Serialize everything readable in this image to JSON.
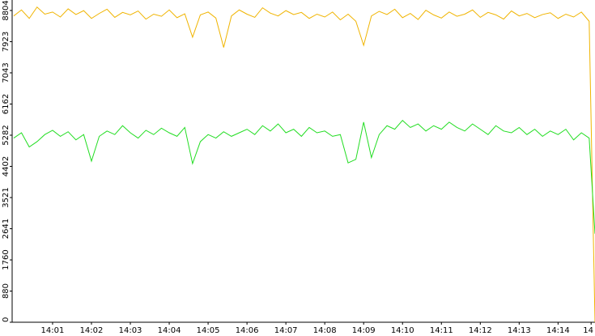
{
  "chart_data": {
    "type": "line",
    "x": [
      0,
      0.2,
      0.4,
      0.6,
      0.8,
      1,
      1.2,
      1.4,
      1.6,
      1.8,
      2,
      2.2,
      2.4,
      2.6,
      2.8,
      3,
      3.2,
      3.4,
      3.6,
      3.8,
      4,
      4.2,
      4.4,
      4.6,
      4.8,
      5,
      5.2,
      5.4,
      5.6,
      5.8,
      6,
      6.2,
      6.4,
      6.6,
      6.8,
      7,
      7.2,
      7.4,
      7.6,
      7.8,
      8,
      8.2,
      8.4,
      8.6,
      8.8,
      9,
      9.2,
      9.4,
      9.6,
      9.8,
      10,
      10.2,
      10.4,
      10.6,
      10.8,
      11,
      11.2,
      11.4,
      11.6,
      11.8,
      12,
      12.2,
      12.4,
      12.6,
      12.8,
      13,
      13.2,
      13.4,
      13.6,
      13.8,
      14,
      14.2,
      14.4,
      14.6,
      14.8,
      14.95
    ],
    "series": [
      {
        "color": "#f0b400",
        "values": [
          8650,
          8820,
          8580,
          8900,
          8700,
          8760,
          8620,
          8850,
          8690,
          8800,
          8580,
          8720,
          8840,
          8610,
          8750,
          8680,
          8790,
          8560,
          8700,
          8640,
          8820,
          8600,
          8710,
          8050,
          8680,
          8760,
          8590,
          7760,
          8650,
          8820,
          8700,
          8610,
          8880,
          8730,
          8650,
          8800,
          8690,
          8750,
          8580,
          8700,
          8620,
          8760,
          8540,
          8700,
          8500,
          7820,
          8650,
          8780,
          8690,
          8840,
          8600,
          8720,
          8550,
          8810,
          8680,
          8590,
          8760,
          8640,
          8700,
          8820,
          8610,
          8750,
          8680,
          8560,
          8790,
          8650,
          8720,
          8600,
          8690,
          8740,
          8580,
          8700,
          8620,
          8760,
          8500,
          0
        ]
      },
      {
        "color": "#22dd22",
        "values": [
          5200,
          5350,
          4950,
          5100,
          5300,
          5420,
          5250,
          5380,
          5150,
          5300,
          4550,
          5250,
          5400,
          5300,
          5550,
          5350,
          5200,
          5420,
          5300,
          5480,
          5350,
          5250,
          5500,
          4480,
          5100,
          5300,
          5200,
          5380,
          5250,
          5350,
          5450,
          5300,
          5550,
          5400,
          5600,
          5350,
          5450,
          5250,
          5500,
          5350,
          5400,
          5250,
          5300,
          4500,
          4600,
          5650,
          4650,
          5300,
          5550,
          5450,
          5700,
          5500,
          5600,
          5400,
          5550,
          5450,
          5650,
          5500,
          5400,
          5600,
          5450,
          5300,
          5550,
          5400,
          5350,
          5500,
          5300,
          5450,
          5250,
          5400,
          5300,
          5450,
          5150,
          5350,
          5200,
          2500
        ]
      }
    ],
    "xlim": [
      -0.04,
      14.95
    ],
    "xticks": [
      {
        "value": 1,
        "label": "14:01"
      },
      {
        "value": 2,
        "label": "14:02"
      },
      {
        "value": 3,
        "label": "14:03"
      },
      {
        "value": 4,
        "label": "14:04"
      },
      {
        "value": 5,
        "label": "14:05"
      },
      {
        "value": 6,
        "label": "14:06"
      },
      {
        "value": 7,
        "label": "14:07"
      },
      {
        "value": 8,
        "label": "14:08"
      },
      {
        "value": 9,
        "label": "14:09"
      },
      {
        "value": 10,
        "label": "14:10"
      },
      {
        "value": 11,
        "label": "14:11"
      },
      {
        "value": 12,
        "label": "14:12"
      },
      {
        "value": 13,
        "label": "14:13"
      },
      {
        "value": 14,
        "label": "14:14"
      },
      {
        "value": 14.85,
        "label": "14"
      }
    ],
    "ylim": [
      0,
      9100
    ],
    "yticks": [
      0,
      880,
      1760,
      2641,
      3521,
      4402,
      5282,
      6162,
      7043,
      7923,
      8804
    ]
  }
}
